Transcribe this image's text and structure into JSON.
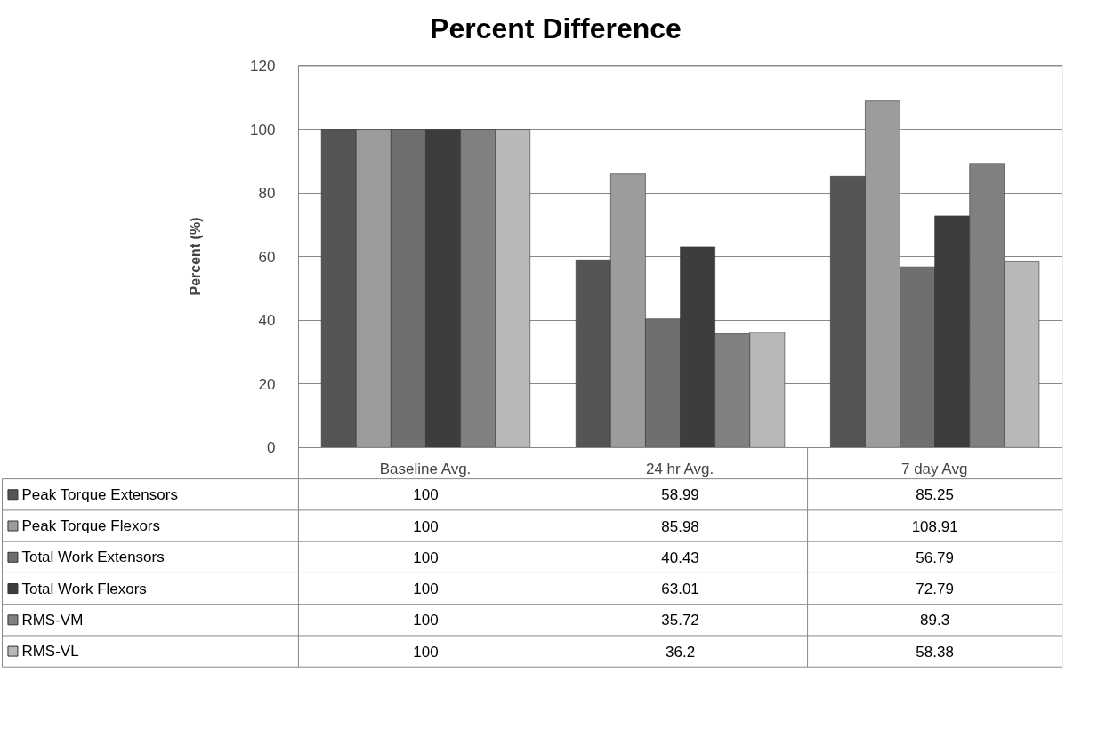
{
  "chart_data": {
    "type": "bar",
    "title": "Percent Difference",
    "ylabel": "Percent (%)",
    "categories": [
      "Baseline Avg.",
      "24 hr Avg.",
      "7 day Avg"
    ],
    "series": [
      {
        "name": "Peak Torque Extensors",
        "color": "#555555",
        "values": [
          100,
          58.99,
          85.25
        ]
      },
      {
        "name": "Peak Torque Flexors",
        "color": "#9c9c9c",
        "values": [
          100,
          85.98,
          108.91
        ]
      },
      {
        "name": "Total Work Extensors",
        "color": "#6f6f6f",
        "values": [
          100,
          40.43,
          56.79
        ]
      },
      {
        "name": "Total Work Flexors",
        "color": "#3d3d3d",
        "values": [
          100,
          63.01,
          72.79
        ]
      },
      {
        "name": "RMS-VM",
        "color": "#808080",
        "values": [
          100,
          35.72,
          89.3
        ]
      },
      {
        "name": "RMS-VL",
        "color": "#b8b8b8",
        "values": [
          100,
          36.2,
          58.38
        ]
      }
    ],
    "ylim": [
      0,
      120
    ],
    "yticks": [
      0,
      20,
      40,
      60,
      80,
      100,
      120
    ],
    "grid": "y",
    "legend": "bottom",
    "data_labels": true
  }
}
